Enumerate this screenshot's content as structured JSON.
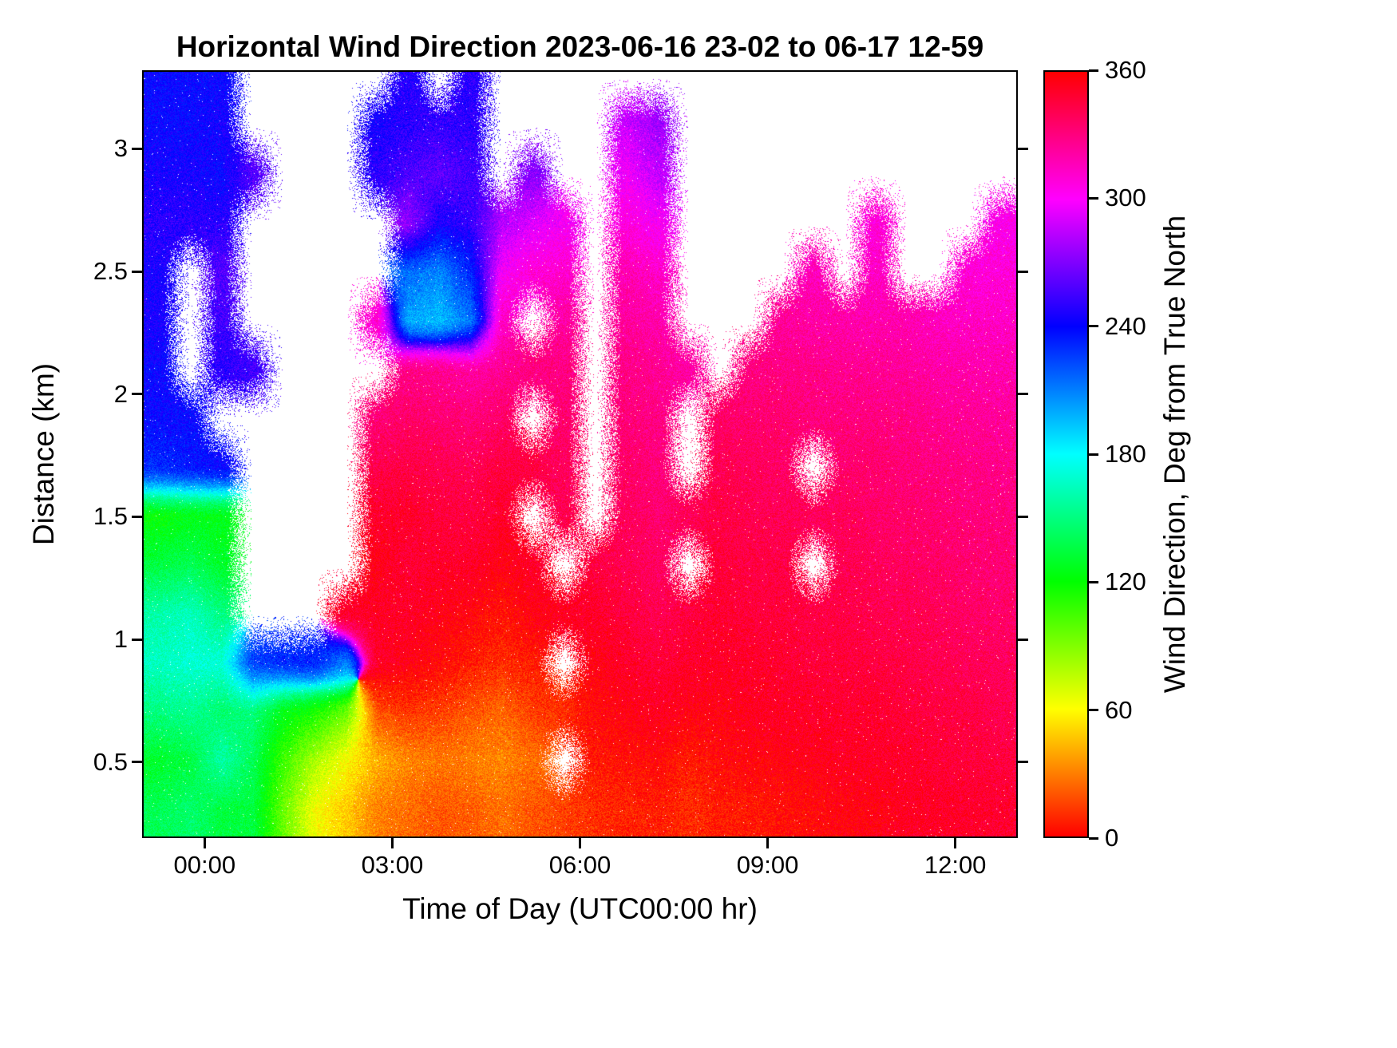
{
  "title": "Horizontal Wind Direction 2023-06-16 23-02 to 06-17 12-59",
  "axes": {
    "x": {
      "label": "Time of Day (UTC00:00 hr)",
      "ticks": [
        "00:00",
        "03:00",
        "06:00",
        "09:00",
        "12:00"
      ],
      "tick_hours": [
        0,
        3,
        6,
        9,
        12
      ]
    },
    "y": {
      "label": "Distance (km)",
      "ticks": [
        "0.5",
        "1",
        "1.5",
        "2",
        "2.5",
        "3"
      ],
      "tick_values": [
        0.5,
        1,
        1.5,
        2,
        2.5,
        3
      ]
    }
  },
  "colorbar": {
    "label": "Wind Direction, Deg from True North",
    "ticks": [
      "0",
      "60",
      "120",
      "180",
      "240",
      "300",
      "360"
    ],
    "tick_values": [
      0,
      60,
      120,
      180,
      240,
      300,
      360
    ],
    "range": [
      0,
      360
    ],
    "colormap": "hsv"
  },
  "chart_data": {
    "type": "heatmap",
    "title": "Horizontal Wind Direction 2023-06-16 23-02 to 06-17 12-59",
    "xlabel": "Time of Day (UTC00:00 hr)",
    "ylabel": "Distance (km)",
    "colorbar_label": "Wind Direction, Deg from True North",
    "colormap": "hsv",
    "value_range_deg": [
      0,
      360
    ],
    "x_range_hours": [
      -1.0,
      13.0
    ],
    "y_range_km": [
      0.19,
      3.32
    ],
    "note": "values are wind direction in degrees from true north; null = no data (white); rows ordered bottom (lowest altitude) to top",
    "x_hours": [
      -0.75,
      -0.25,
      0.25,
      0.75,
      1.25,
      1.75,
      2.25,
      2.75,
      3.25,
      3.75,
      4.25,
      4.75,
      5.25,
      5.75,
      6.25,
      6.75,
      7.25,
      7.75,
      8.25,
      8.75,
      9.25,
      9.75,
      10.25,
      10.75,
      11.25,
      11.75,
      12.25,
      12.75
    ],
    "y_km": [
      0.3,
      0.5,
      0.7,
      0.9,
      1.1,
      1.3,
      1.5,
      1.7,
      1.9,
      2.1,
      2.3,
      2.5,
      2.7,
      2.9,
      3.1,
      3.3
    ],
    "values_deg": [
      [
        140,
        145,
        135,
        135,
        95,
        62,
        48,
        30,
        25,
        20,
        22,
        26,
        20,
        15,
        10,
        8,
        6,
        10,
        6,
        5,
        2,
        0,
        357,
        356,
        352,
        351,
        350,
        349
      ],
      [
        130,
        135,
        160,
        140,
        105,
        80,
        60,
        42,
        32,
        28,
        30,
        32,
        26,
        null,
        5,
        2,
        0,
        6,
        0,
        358,
        356,
        355,
        352,
        351,
        350,
        347,
        346,
        345
      ],
      [
        150,
        155,
        145,
        150,
        125,
        115,
        95,
        20,
        12,
        15,
        20,
        24,
        15,
        10,
        0,
        356,
        352,
        356,
        356,
        352,
        351,
        350,
        349,
        349,
        346,
        345,
        344,
        341
      ],
      [
        165,
        170,
        170,
        225,
        230,
        232,
        210,
        350,
        356,
        0,
        6,
        10,
        5,
        null,
        356,
        350,
        346,
        350,
        351,
        350,
        349,
        346,
        346,
        345,
        344,
        341,
        340,
        339
      ],
      [
        160,
        165,
        150,
        null,
        null,
        null,
        350,
        352,
        350,
        355,
        358,
        4,
        356,
        352,
        350,
        346,
        341,
        346,
        349,
        346,
        346,
        344,
        344,
        341,
        341,
        339,
        336,
        336
      ],
      [
        135,
        140,
        130,
        null,
        null,
        null,
        null,
        355,
        347,
        350,
        350,
        356,
        350,
        null,
        345,
        341,
        337,
        null,
        346,
        344,
        344,
        null,
        341,
        339,
        338,
        336,
        334,
        333
      ],
      [
        120,
        125,
        125,
        null,
        null,
        null,
        null,
        350,
        350,
        346,
        345,
        350,
        null,
        342,
        null,
        339,
        334,
        340,
        344,
        341,
        340,
        339,
        339,
        336,
        335,
        334,
        331,
        331
      ],
      [
        230,
        235,
        240,
        null,
        null,
        null,
        null,
        342,
        344,
        341,
        340,
        345,
        344,
        338,
        null,
        336,
        331,
        null,
        341,
        339,
        336,
        null,
        335,
        334,
        331,
        330,
        329,
        328
      ],
      [
        240,
        240,
        null,
        null,
        null,
        null,
        null,
        332,
        336,
        334,
        331,
        336,
        null,
        334,
        null,
        332,
        329,
        null,
        336,
        334,
        334,
        331,
        331,
        330,
        329,
        326,
        325,
        324
      ],
      [
        240,
        null,
        250,
        255,
        null,
        null,
        null,
        null,
        328,
        326,
        321,
        326,
        330,
        330,
        null,
        329,
        325,
        321,
        null,
        330,
        329,
        328,
        326,
        325,
        324,
        321,
        320,
        319
      ],
      [
        245,
        null,
        255,
        null,
        null,
        null,
        null,
        310,
        200,
        195,
        212,
        314,
        null,
        322,
        null,
        324,
        319,
        null,
        null,
        null,
        324,
        321,
        320,
        319,
        319,
        315,
        314,
        314
      ],
      [
        245,
        null,
        260,
        null,
        null,
        null,
        null,
        null,
        215,
        208,
        232,
        300,
        310,
        312,
        null,
        318,
        313,
        null,
        null,
        null,
        null,
        316,
        null,
        314,
        null,
        null,
        309,
        309
      ],
      [
        250,
        250,
        250,
        null,
        null,
        null,
        null,
        null,
        275,
        245,
        252,
        282,
        292,
        300,
        null,
        308,
        300,
        null,
        null,
        null,
        null,
        null,
        null,
        309,
        null,
        null,
        null,
        304
      ],
      [
        245,
        245,
        240,
        260,
        null,
        null,
        null,
        250,
        258,
        262,
        256,
        null,
        272,
        null,
        null,
        298,
        286,
        null,
        null,
        null,
        null,
        null,
        null,
        null,
        null,
        null,
        null,
        null
      ],
      [
        240,
        240,
        245,
        null,
        null,
        null,
        null,
        245,
        250,
        252,
        250,
        null,
        null,
        null,
        null,
        288,
        278,
        null,
        null,
        null,
        null,
        null,
        null,
        null,
        null,
        null,
        null,
        null
      ],
      [
        240,
        240,
        240,
        null,
        null,
        null,
        null,
        null,
        248,
        null,
        250,
        null,
        null,
        null,
        null,
        null,
        null,
        null,
        null,
        null,
        null,
        null,
        null,
        null,
        null,
        null,
        null,
        null
      ]
    ]
  }
}
